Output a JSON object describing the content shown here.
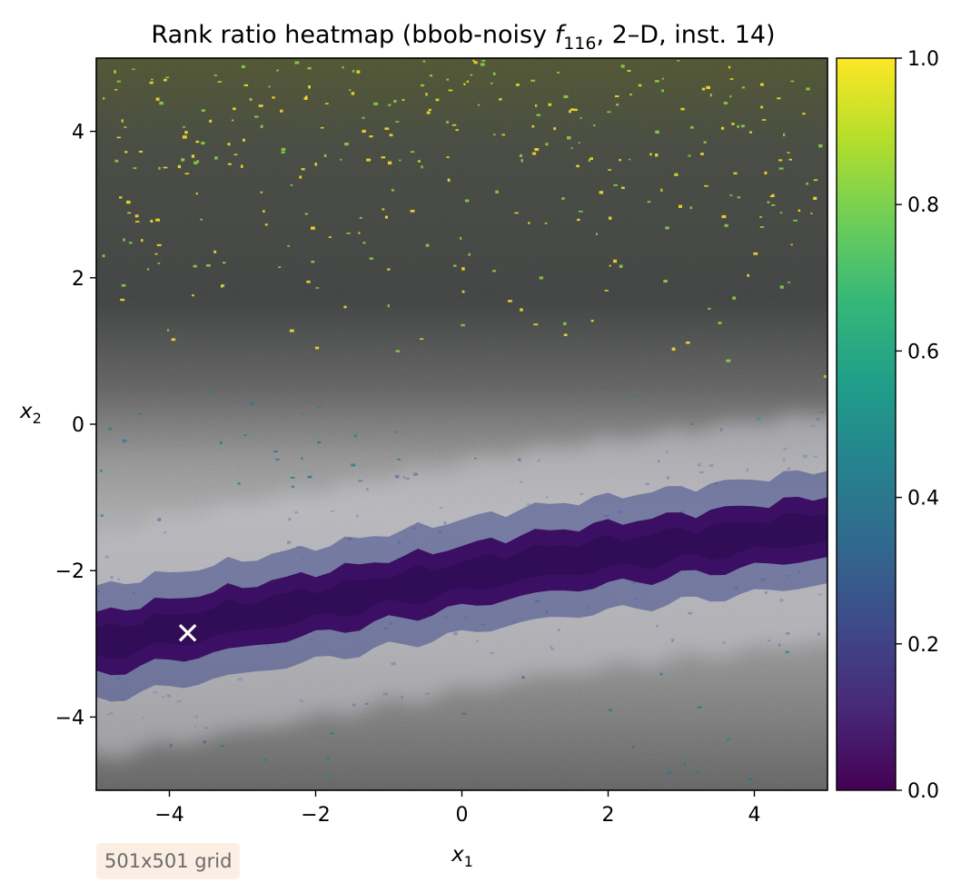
{
  "chart_data": {
    "type": "heatmap",
    "title": {
      "prefix": "Rank ratio heatmap (bbob-noisy ",
      "func_symbol": "f",
      "func_subscript": "116",
      "suffix": ", 2–D, inst. 14)"
    },
    "xlabel": {
      "symbol": "x",
      "subscript": "1"
    },
    "ylabel": {
      "symbol": "x",
      "subscript": "2"
    },
    "xlim": [
      -5,
      5
    ],
    "ylim": [
      -5,
      5
    ],
    "xticks": [
      {
        "value": -4,
        "label": "−4"
      },
      {
        "value": -2,
        "label": "−2"
      },
      {
        "value": 0,
        "label": "0"
      },
      {
        "value": 2,
        "label": "2"
      },
      {
        "value": 4,
        "label": "4"
      }
    ],
    "yticks": [
      {
        "value": -4,
        "label": "−4"
      },
      {
        "value": -2,
        "label": "−2"
      },
      {
        "value": 0,
        "label": "0"
      },
      {
        "value": 2,
        "label": "2"
      },
      {
        "value": 4,
        "label": "4"
      }
    ],
    "colorbar": {
      "colormap": "viridis",
      "vmin": 0,
      "vmax": 1,
      "ticks": [
        {
          "value": 0.0,
          "label": "0.0"
        },
        {
          "value": 0.2,
          "label": "0.2"
        },
        {
          "value": 0.4,
          "label": "0.4"
        },
        {
          "value": 0.6,
          "label": "0.6"
        },
        {
          "value": 0.8,
          "label": "0.8"
        },
        {
          "value": 1.0,
          "label": "1.0"
        }
      ],
      "stops": [
        "#440154",
        "#482878",
        "#3e4989",
        "#31688e",
        "#26828e",
        "#1f9e89",
        "#35b779",
        "#6ece58",
        "#b5de2b",
        "#fde725"
      ]
    },
    "valley": {
      "description_points": [
        [
          -5,
          -3.0
        ],
        [
          -2,
          -2.45
        ],
        [
          1,
          -1.9
        ],
        [
          5,
          -1.4
        ]
      ],
      "color": "#3b0f63"
    },
    "optimum_marker": {
      "x": -3.75,
      "y": -2.85,
      "symbol": "×",
      "color": "#ffffff"
    },
    "grid_note": "501x501 grid"
  }
}
